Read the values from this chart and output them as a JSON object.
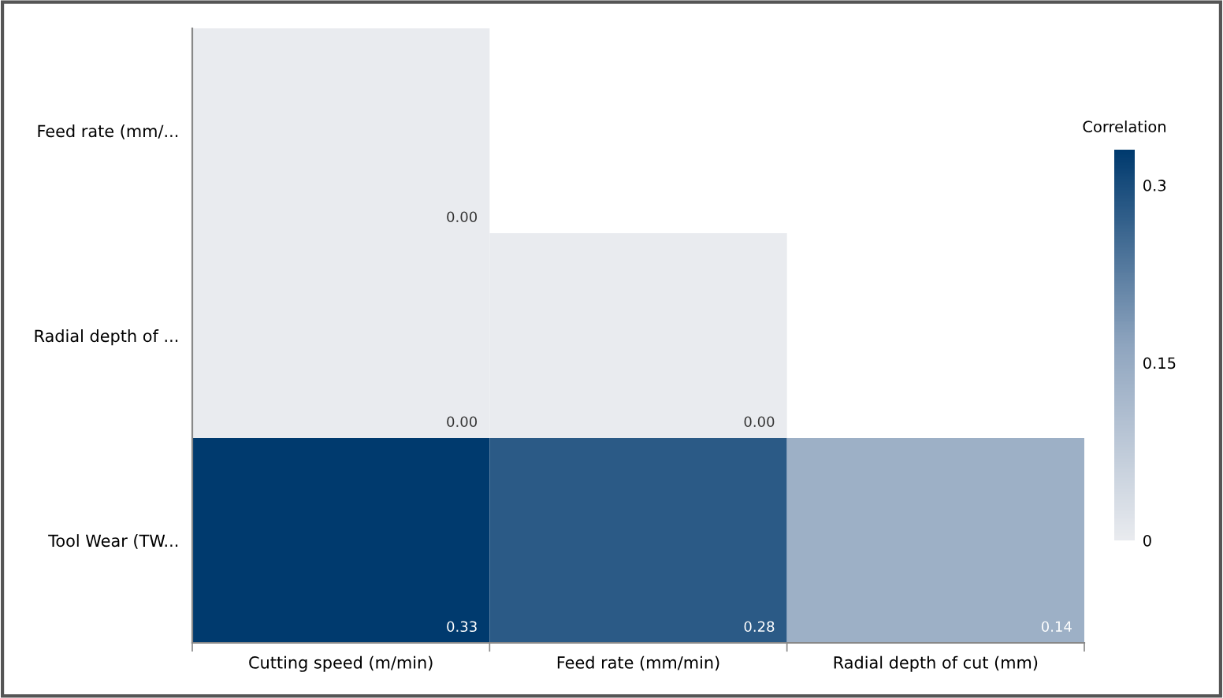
{
  "chart_data": {
    "type": "heatmap",
    "clabel": "Correlation",
    "categories": [
      "Cutting speed (m/min)",
      "Feed rate (mm/min)",
      "Radial depth of cut (mm)"
    ],
    "y_categories": [
      "Feed rate (mm/...",
      "Radial depth of ...",
      "Tool Wear (TW..."
    ],
    "cells": [
      [
        0.0,
        null,
        null
      ],
      [
        0.0,
        0.0,
        null
      ],
      [
        0.33,
        0.28,
        0.14
      ]
    ],
    "cell_labels": [
      [
        "0.00",
        null,
        null
      ],
      [
        "0.00",
        "0.00",
        null
      ],
      [
        "0.33",
        "0.28",
        "0.14"
      ]
    ],
    "clim": [
      0,
      0.33
    ],
    "cticks": [
      0,
      0.15,
      0.3
    ]
  }
}
